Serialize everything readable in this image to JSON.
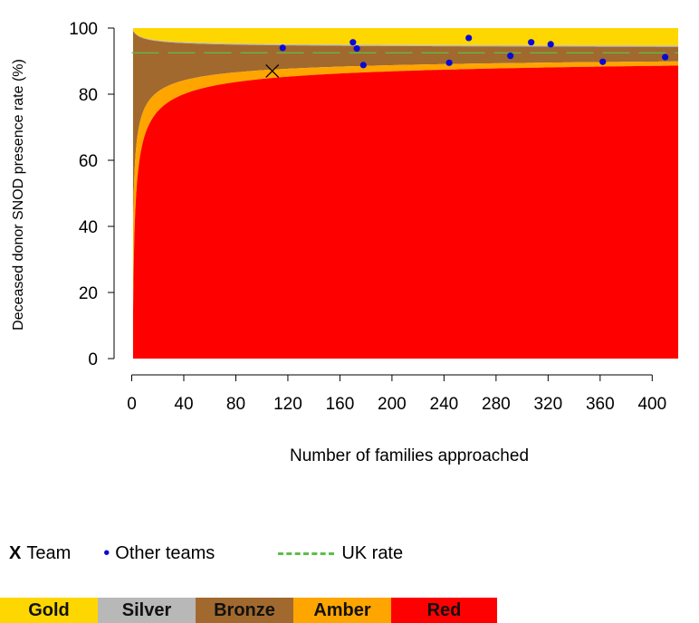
{
  "chart_data": {
    "type": "scatter",
    "title": "",
    "xlabel": "Number of families approached",
    "ylabel": "Deceased donor SNOD presence rate (%)",
    "xlim": [
      0,
      420
    ],
    "ylim": [
      0,
      100
    ],
    "xticks": [
      "0",
      "40",
      "80",
      "120",
      "160",
      "200",
      "240",
      "280",
      "320",
      "360",
      "400"
    ],
    "yticks": [
      "0",
      "20",
      "40",
      "60",
      "80",
      "100"
    ],
    "uk_rate": 92.5,
    "team_point": {
      "x": 108,
      "y": 87
    },
    "other_teams": [
      {
        "x": 116,
        "y": 94
      },
      {
        "x": 170,
        "y": 95.7
      },
      {
        "x": 173,
        "y": 93.8
      },
      {
        "x": 178,
        "y": 88.8
      },
      {
        "x": 244,
        "y": 89.5
      },
      {
        "x": 259,
        "y": 97
      },
      {
        "x": 291,
        "y": 91.6
      },
      {
        "x": 307,
        "y": 95.7
      },
      {
        "x": 322,
        "y": 95.1
      },
      {
        "x": 362,
        "y": 89.8
      },
      {
        "x": 410,
        "y": 91.2
      }
    ],
    "bands": [
      {
        "name": "Gold",
        "color": "#ffd700"
      },
      {
        "name": "Silver",
        "color": "#b8b8b8"
      },
      {
        "name": "Bronze",
        "color": "#a2692e"
      },
      {
        "name": "Amber",
        "color": "#ffa500"
      },
      {
        "name": "Red",
        "color": "#ff0000"
      }
    ],
    "grid": false
  },
  "legend": {
    "team_marker": "X",
    "team_label": "Team",
    "other_marker": "•",
    "other_label": "Other teams",
    "uk_label": "UK rate"
  },
  "colors": {
    "point": "#0a0ad6",
    "uk_line": "#5cbf4a",
    "team_marker": "#000000"
  }
}
